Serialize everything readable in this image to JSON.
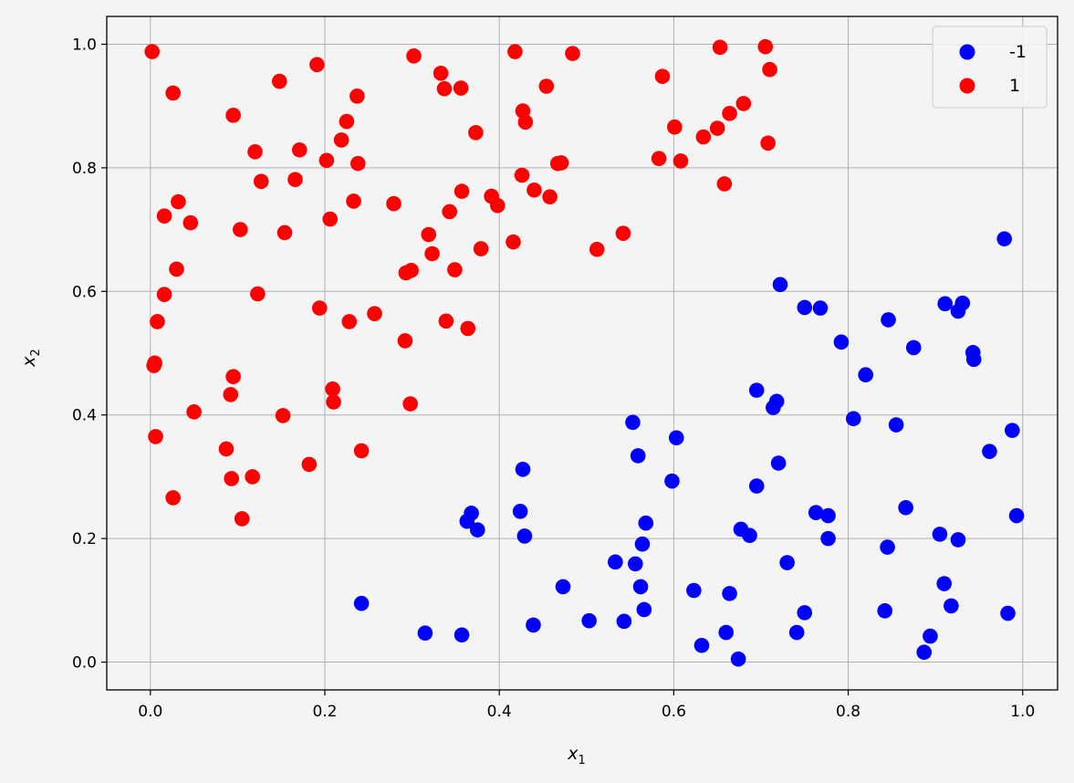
{
  "chart_data": {
    "type": "scatter",
    "xlabel": "x",
    "xlabel_sub": "1",
    "ylabel": "x",
    "ylabel_sub": "2",
    "xlim": [
      -0.05,
      1.04
    ],
    "ylim": [
      -0.045,
      1.045
    ],
    "xticks": [
      0.0,
      0.2,
      0.4,
      0.6,
      0.8,
      1.0
    ],
    "yticks": [
      0.0,
      0.2,
      0.4,
      0.6,
      0.8,
      1.0
    ],
    "xtick_labels": [
      "0.0",
      "0.2",
      "0.4",
      "0.6",
      "0.8",
      "1.0"
    ],
    "ytick_labels": [
      "0.0",
      "0.2",
      "0.4",
      "0.6",
      "0.8",
      "1.0"
    ],
    "grid": true,
    "legend_position": "top-right",
    "series": [
      {
        "name": "-1",
        "color": "#0000ff",
        "points": [
          [
            0.242,
            0.095
          ],
          [
            0.315,
            0.047
          ],
          [
            0.357,
            0.044
          ],
          [
            0.363,
            0.228
          ],
          [
            0.368,
            0.241
          ],
          [
            0.375,
            0.214
          ],
          [
            0.424,
            0.244
          ],
          [
            0.427,
            0.312
          ],
          [
            0.429,
            0.204
          ],
          [
            0.439,
            0.06
          ],
          [
            0.473,
            0.122
          ],
          [
            0.503,
            0.067
          ],
          [
            0.533,
            0.162
          ],
          [
            0.543,
            0.066
          ],
          [
            0.553,
            0.388
          ],
          [
            0.556,
            0.159
          ],
          [
            0.559,
            0.334
          ],
          [
            0.562,
            0.122
          ],
          [
            0.564,
            0.191
          ],
          [
            0.566,
            0.085
          ],
          [
            0.568,
            0.225
          ],
          [
            0.598,
            0.293
          ],
          [
            0.603,
            0.363
          ],
          [
            0.623,
            0.116
          ],
          [
            0.632,
            0.027
          ],
          [
            0.66,
            0.048
          ],
          [
            0.664,
            0.111
          ],
          [
            0.674,
            0.005
          ],
          [
            0.677,
            0.215
          ],
          [
            0.687,
            0.205
          ],
          [
            0.695,
            0.285
          ],
          [
            0.695,
            0.44
          ],
          [
            0.714,
            0.412
          ],
          [
            0.718,
            0.422
          ],
          [
            0.72,
            0.322
          ],
          [
            0.722,
            0.611
          ],
          [
            0.73,
            0.161
          ],
          [
            0.741,
            0.048
          ],
          [
            0.75,
            0.08
          ],
          [
            0.75,
            0.574
          ],
          [
            0.763,
            0.242
          ],
          [
            0.768,
            0.573
          ],
          [
            0.777,
            0.2
          ],
          [
            0.777,
            0.237
          ],
          [
            0.792,
            0.518
          ],
          [
            0.806,
            0.394
          ],
          [
            0.82,
            0.465
          ],
          [
            0.842,
            0.083
          ],
          [
            0.845,
            0.186
          ],
          [
            0.846,
            0.554
          ],
          [
            0.855,
            0.384
          ],
          [
            0.866,
            0.25
          ],
          [
            0.875,
            0.509
          ],
          [
            0.887,
            0.016
          ],
          [
            0.894,
            0.042
          ],
          [
            0.905,
            0.207
          ],
          [
            0.91,
            0.127
          ],
          [
            0.911,
            0.58
          ],
          [
            0.918,
            0.091
          ],
          [
            0.926,
            0.198
          ],
          [
            0.926,
            0.568
          ],
          [
            0.931,
            0.581
          ],
          [
            0.943,
            0.501
          ],
          [
            0.944,
            0.49
          ],
          [
            0.962,
            0.341
          ],
          [
            0.979,
            0.685
          ],
          [
            0.983,
            0.079
          ],
          [
            0.988,
            0.375
          ],
          [
            0.993,
            0.237
          ]
        ]
      },
      {
        "name": "1",
        "color": "#ff0000",
        "points": [
          [
            0.002,
            0.988
          ],
          [
            0.004,
            0.48
          ],
          [
            0.005,
            0.484
          ],
          [
            0.006,
            0.365
          ],
          [
            0.008,
            0.551
          ],
          [
            0.016,
            0.595
          ],
          [
            0.016,
            0.722
          ],
          [
            0.026,
            0.266
          ],
          [
            0.026,
            0.921
          ],
          [
            0.03,
            0.636
          ],
          [
            0.032,
            0.745
          ],
          [
            0.046,
            0.711
          ],
          [
            0.05,
            0.405
          ],
          [
            0.087,
            0.345
          ],
          [
            0.092,
            0.433
          ],
          [
            0.093,
            0.297
          ],
          [
            0.095,
            0.462
          ],
          [
            0.095,
            0.885
          ],
          [
            0.103,
            0.7
          ],
          [
            0.105,
            0.232
          ],
          [
            0.117,
            0.3
          ],
          [
            0.12,
            0.826
          ],
          [
            0.123,
            0.596
          ],
          [
            0.127,
            0.778
          ],
          [
            0.148,
            0.94
          ],
          [
            0.152,
            0.399
          ],
          [
            0.154,
            0.695
          ],
          [
            0.166,
            0.781
          ],
          [
            0.171,
            0.829
          ],
          [
            0.182,
            0.32
          ],
          [
            0.191,
            0.967
          ],
          [
            0.194,
            0.573
          ],
          [
            0.202,
            0.812
          ],
          [
            0.206,
            0.717
          ],
          [
            0.209,
            0.442
          ],
          [
            0.21,
            0.421
          ],
          [
            0.219,
            0.845
          ],
          [
            0.225,
            0.875
          ],
          [
            0.228,
            0.551
          ],
          [
            0.233,
            0.746
          ],
          [
            0.237,
            0.916
          ],
          [
            0.238,
            0.807
          ],
          [
            0.242,
            0.342
          ],
          [
            0.257,
            0.564
          ],
          [
            0.279,
            0.742
          ],
          [
            0.292,
            0.52
          ],
          [
            0.293,
            0.63
          ],
          [
            0.298,
            0.418
          ],
          [
            0.299,
            0.634
          ],
          [
            0.302,
            0.981
          ],
          [
            0.319,
            0.692
          ],
          [
            0.323,
            0.661
          ],
          [
            0.333,
            0.953
          ],
          [
            0.337,
            0.928
          ],
          [
            0.339,
            0.552
          ],
          [
            0.343,
            0.729
          ],
          [
            0.349,
            0.635
          ],
          [
            0.356,
            0.929
          ],
          [
            0.357,
            0.762
          ],
          [
            0.364,
            0.54
          ],
          [
            0.373,
            0.857
          ],
          [
            0.379,
            0.669
          ],
          [
            0.391,
            0.754
          ],
          [
            0.398,
            0.739
          ],
          [
            0.416,
            0.68
          ],
          [
            0.418,
            0.988
          ],
          [
            0.426,
            0.788
          ],
          [
            0.427,
            0.892
          ],
          [
            0.43,
            0.874
          ],
          [
            0.44,
            0.764
          ],
          [
            0.454,
            0.932
          ],
          [
            0.458,
            0.753
          ],
          [
            0.467,
            0.807
          ],
          [
            0.471,
            0.808
          ],
          [
            0.484,
            0.985
          ],
          [
            0.512,
            0.668
          ],
          [
            0.542,
            0.694
          ],
          [
            0.583,
            0.815
          ],
          [
            0.587,
            0.948
          ],
          [
            0.601,
            0.866
          ],
          [
            0.608,
            0.811
          ],
          [
            0.634,
            0.85
          ],
          [
            0.65,
            0.864
          ],
          [
            0.653,
            0.995
          ],
          [
            0.658,
            0.774
          ],
          [
            0.664,
            0.888
          ],
          [
            0.68,
            0.904
          ],
          [
            0.705,
            0.996
          ],
          [
            0.708,
            0.84
          ],
          [
            0.71,
            0.959
          ]
        ]
      }
    ]
  }
}
